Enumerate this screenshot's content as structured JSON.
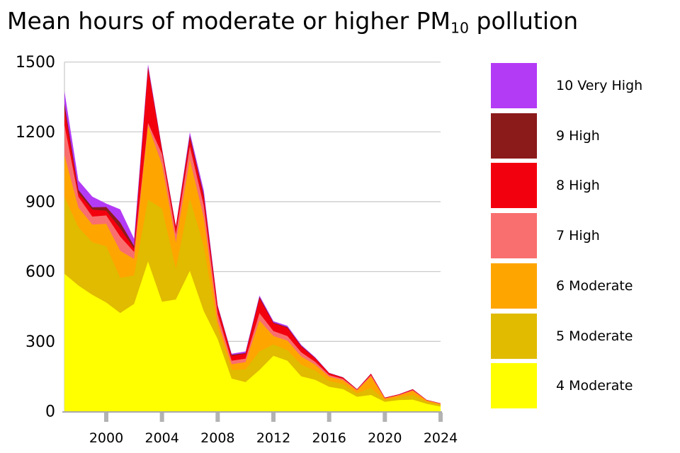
{
  "title": {
    "prefix": "Mean hours of moderate or higher PM",
    "subscript": "10",
    "suffix": " pollution"
  },
  "legend": {
    "items": [
      {
        "label": "10 Very High",
        "color": "#b43bf6"
      },
      {
        "label": "9 High",
        "color": "#8b1a1a"
      },
      {
        "label": "8 High",
        "color": "#f3000e"
      },
      {
        "label": "7 High",
        "color": "#f96f6f"
      },
      {
        "label": "6 Moderate",
        "color": "#ffa500"
      },
      {
        "label": "5 Moderate",
        "color": "#e0bb00"
      },
      {
        "label": "4 Moderate",
        "color": "#ffff00"
      }
    ]
  },
  "chart_data": {
    "type": "area",
    "stacked": true,
    "title": "Mean hours of moderate or higher PM10 pollution",
    "xlabel": "",
    "ylabel": "",
    "x": [
      1997,
      1998,
      1999,
      2000,
      2001,
      2002,
      2003,
      2004,
      2005,
      2006,
      2007,
      2008,
      2009,
      2010,
      2011,
      2012,
      2013,
      2014,
      2015,
      2016,
      2017,
      2018,
      2019,
      2020,
      2021,
      2022,
      2023,
      2024
    ],
    "xticks": [
      2000,
      2004,
      2008,
      2012,
      2016,
      2020,
      2024
    ],
    "yticks": [
      0,
      300,
      600,
      900,
      1200,
      1500
    ],
    "ylim": [
      0,
      1500
    ],
    "grid": true,
    "legend_position": "right",
    "series": [
      {
        "name": "4 Moderate",
        "color": "#ffff00",
        "values": [
          590,
          540,
          500,
          467,
          422,
          461,
          643,
          470,
          480,
          603,
          430,
          310,
          140,
          125,
          177,
          238,
          217,
          150,
          135,
          105,
          95,
          62,
          70,
          40,
          48,
          50,
          32,
          20
        ]
      },
      {
        "name": "5 Moderate",
        "color": "#e0bb00",
        "values": [
          330,
          250,
          226,
          242,
          151,
          122,
          266,
          400,
          133,
          310,
          280,
          46,
          37,
          55,
          80,
          49,
          45,
          50,
          40,
          25,
          22,
          15,
          30,
          8,
          12,
          20,
          8,
          6
        ]
      },
      {
        "name": "6 Moderate",
        "color": "#ffa500",
        "values": [
          180,
          85,
          76,
          96,
          116,
          71,
          318,
          190,
          112,
          168,
          122,
          30,
          25,
          31,
          133,
          36,
          41,
          35,
          25,
          18,
          16,
          12,
          50,
          6,
          8,
          18,
          6,
          5
        ]
      },
      {
        "name": "7 High",
        "color": "#f96f6f",
        "values": [
          130,
          46,
          34,
          36,
          61,
          30,
          11,
          45,
          35,
          56,
          51,
          31,
          15,
          15,
          31,
          21,
          20,
          18,
          12,
          7,
          6,
          3,
          5,
          2,
          2,
          3,
          1.5,
          1.5
        ]
      },
      {
        "name": "8 High",
        "color": "#f3000e",
        "values": [
          70,
          17,
          30,
          20,
          36,
          15,
          235,
          15,
          30,
          36,
          35,
          30,
          21,
          21,
          64,
          34,
          35,
          25,
          15,
          8,
          5,
          2,
          5,
          2,
          2,
          3,
          1,
          1
        ]
      },
      {
        "name": "9 High",
        "color": "#8b1a1a",
        "values": [
          20,
          13,
          10,
          16,
          25,
          11,
          5,
          5,
          3,
          10,
          10,
          4,
          4,
          3,
          5,
          3,
          3,
          3,
          2,
          1,
          1,
          0.5,
          1,
          0.3,
          0.5,
          0.5,
          0.25,
          0.25
        ]
      },
      {
        "name": "10 Very High",
        "color": "#b43bf6",
        "values": [
          55,
          40,
          46,
          15,
          56,
          31,
          12,
          5,
          3,
          15,
          20,
          4,
          5,
          7,
          7,
          6,
          6,
          4,
          3,
          1,
          1,
          0.5,
          1,
          0.3,
          0.5,
          0.5,
          0.25,
          0.25
        ]
      }
    ]
  },
  "axes_style": {
    "gridline_color": "#cccccc",
    "baseline_color": "#aaaaaa",
    "tick_color": "#b3b3b3",
    "label_color": "#000000"
  }
}
